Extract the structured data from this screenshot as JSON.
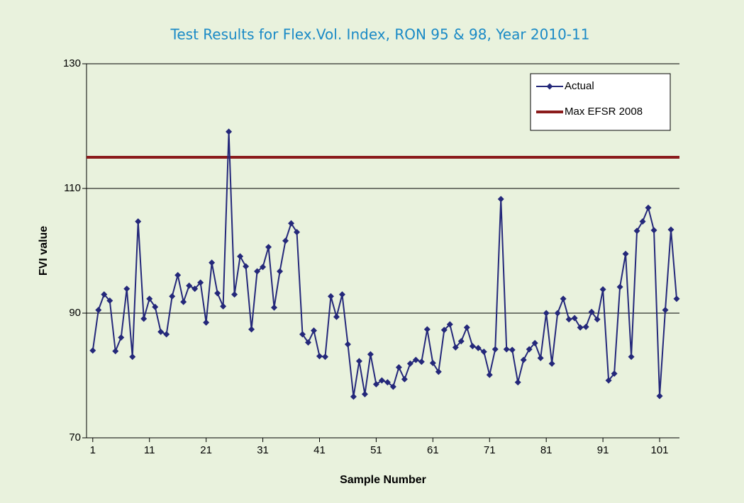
{
  "chart_data": {
    "type": "line",
    "title": "Test Results for Flex.Vol. Index, RON 95 & 98, Year 2010-11",
    "x_label": "Sample Number",
    "y_label": "FVI value",
    "x": [
      1,
      2,
      3,
      4,
      5,
      6,
      7,
      8,
      9,
      10,
      11,
      12,
      13,
      14,
      15,
      16,
      17,
      18,
      19,
      20,
      21,
      22,
      23,
      24,
      25,
      26,
      27,
      28,
      29,
      30,
      31,
      32,
      33,
      34,
      35,
      36,
      37,
      38,
      39,
      40,
      41,
      42,
      43,
      44,
      45,
      46,
      47,
      48,
      49,
      50,
      51,
      52,
      53,
      54,
      55,
      56,
      57,
      58,
      59,
      60,
      61,
      62,
      63,
      64,
      65,
      66,
      67,
      68,
      69,
      70,
      71,
      72,
      73,
      74,
      75,
      76,
      77,
      78,
      79,
      80,
      81,
      82,
      83,
      84,
      85,
      86,
      87,
      88,
      89,
      90,
      91,
      92,
      93,
      94,
      95,
      96,
      97,
      98,
      99,
      100,
      101,
      102,
      103,
      104
    ],
    "series": [
      {
        "name": "Actual",
        "color": "#24287a",
        "marker": "diamond",
        "values": [
          84.0,
          90.5,
          93.0,
          92.0,
          83.9,
          86.1,
          93.9,
          83.0,
          104.7,
          89.1,
          92.3,
          91.0,
          87.0,
          86.6,
          92.7,
          96.1,
          91.8,
          94.4,
          93.9,
          94.9,
          88.5,
          98.1,
          93.2,
          91.1,
          119.1,
          93.0,
          99.1,
          97.5,
          87.4,
          96.7,
          97.4,
          100.6,
          90.9,
          96.7,
          101.6,
          104.4,
          103.0,
          86.6,
          85.3,
          87.2,
          83.1,
          83.0,
          92.7,
          89.4,
          93.0,
          85.0,
          76.6,
          82.3,
          77.0,
          83.4,
          78.6,
          79.2,
          78.9,
          78.2,
          81.3,
          79.4,
          81.9,
          82.5,
          82.2,
          87.4,
          82.0,
          80.6,
          87.3,
          88.2,
          84.5,
          85.5,
          87.7,
          84.7,
          84.4,
          83.8,
          80.1,
          84.2,
          108.3,
          84.2,
          84.1,
          78.9,
          82.5,
          84.2,
          85.2,
          82.8,
          90.0,
          81.9,
          90.0,
          92.3,
          89.0,
          89.2,
          87.7,
          87.8,
          90.2,
          89.0,
          93.8,
          79.2,
          80.3,
          94.2,
          99.5,
          83.0,
          103.2,
          104.7,
          106.9,
          103.3,
          76.7,
          90.5,
          103.4,
          92.3
        ]
      }
    ],
    "reference_line": {
      "name": "Max EFSR 2008",
      "color": "#8b1c1c",
      "value": 115
    },
    "xlim": [
      -0.1,
      104.5
    ],
    "xticks": [
      1,
      11,
      21,
      31,
      41,
      51,
      61,
      71,
      81,
      91,
      101
    ],
    "ylim": [
      70,
      130
    ],
    "yticks": [
      70,
      90,
      110,
      130
    ],
    "grid": true,
    "legend": "upper right"
  }
}
